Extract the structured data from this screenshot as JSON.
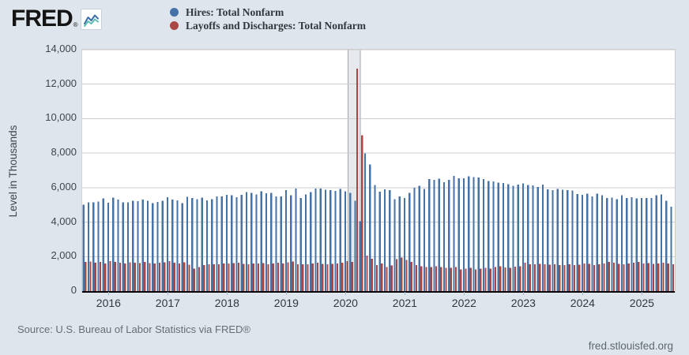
{
  "header": {
    "logo_text": "FRED",
    "logo_registered": "®",
    "legend": [
      {
        "label": "Hires: Total Nonfarm",
        "color": "#4572a7"
      },
      {
        "label": "Layoffs and Discharges: Total Nonfarm",
        "color": "#aa4643"
      }
    ]
  },
  "footer": {
    "source": "Source: U.S. Bureau of Labor Statistics via FRED®",
    "site": "fred.stlouisfed.org"
  },
  "colors": {
    "background": "#dee5ec",
    "plot_background": "#ffffff",
    "gridline": "#cccccc",
    "axis_line": "#000000",
    "recession_band_fill": "#e6eaee",
    "recession_band_edge": "#a5a5a5",
    "hires_blue": "#4572a7",
    "layoffs_red": "#aa4643"
  },
  "chart_data": {
    "type": "bar",
    "title": "",
    "xlabel": "",
    "ylabel": "Level in Thousands",
    "ylim": [
      0,
      14000
    ],
    "grid": true,
    "legend_position": "top",
    "ytick_values": [
      0,
      2000,
      4000,
      6000,
      8000,
      10000,
      12000,
      14000
    ],
    "ytick_labels": [
      "0",
      "2,000",
      "4,000",
      "6,000",
      "8,000",
      "10,000",
      "12,000",
      "14,000"
    ],
    "frequency": "monthly",
    "x_start": "2015-08",
    "x_end": "2025-07",
    "xticks": [
      {
        "label": "2016",
        "index": 5
      },
      {
        "label": "2017",
        "index": 17
      },
      {
        "label": "2018",
        "index": 29
      },
      {
        "label": "2019",
        "index": 41
      },
      {
        "label": "2020",
        "index": 53
      },
      {
        "label": "2021",
        "index": 65
      },
      {
        "label": "2022",
        "index": 77
      },
      {
        "label": "2023",
        "index": 89
      },
      {
        "label": "2024",
        "index": 101
      },
      {
        "label": "2025",
        "index": 113
      }
    ],
    "recession_band": {
      "start_index": 54,
      "end_index": 56
    },
    "series": [
      {
        "name": "Hires: Total Nonfarm",
        "color": "#4572a7",
        "values": [
          5000,
          5150,
          5150,
          5200,
          5380,
          5120,
          5420,
          5300,
          5150,
          5150,
          5250,
          5220,
          5300,
          5230,
          5100,
          5180,
          5250,
          5440,
          5310,
          5270,
          5110,
          5470,
          5400,
          5340,
          5430,
          5270,
          5330,
          5500,
          5490,
          5580,
          5570,
          5440,
          5580,
          5750,
          5700,
          5600,
          5790,
          5680,
          5700,
          5500,
          5480,
          5850,
          5550,
          5950,
          5390,
          5600,
          5750,
          5950,
          5940,
          5890,
          5850,
          5800,
          5930,
          5790,
          5700,
          5240,
          4050,
          7980,
          7350,
          6150,
          5760,
          5900,
          5850,
          5330,
          5480,
          5400,
          5700,
          6000,
          6100,
          5930,
          6500,
          6440,
          6530,
          6320,
          6460,
          6690,
          6540,
          6550,
          6660,
          6620,
          6590,
          6490,
          6380,
          6350,
          6300,
          6270,
          6200,
          6110,
          6170,
          6250,
          6150,
          6120,
          6050,
          6180,
          5900,
          5850,
          5930,
          5870,
          5860,
          5830,
          5620,
          5580,
          5640,
          5500,
          5640,
          5570,
          5390,
          5420,
          5330,
          5560,
          5390,
          5440,
          5370,
          5390,
          5400,
          5410,
          5570,
          5610,
          5230,
          4900
        ]
      },
      {
        "name": "Layoffs and Discharges: Total Nonfarm",
        "color": "#aa4643",
        "values": [
          1700,
          1720,
          1650,
          1700,
          1600,
          1750,
          1700,
          1640,
          1600,
          1680,
          1650,
          1620,
          1700,
          1630,
          1610,
          1650,
          1680,
          1730,
          1650,
          1600,
          1680,
          1540,
          1300,
          1400,
          1500,
          1550,
          1560,
          1550,
          1590,
          1600,
          1620,
          1640,
          1580,
          1560,
          1600,
          1610,
          1630,
          1560,
          1610,
          1650,
          1610,
          1680,
          1720,
          1560,
          1550,
          1560,
          1600,
          1650,
          1580,
          1560,
          1570,
          1600,
          1650,
          1750,
          1700,
          12900,
          9030,
          2050,
          1880,
          1500,
          1600,
          1400,
          1480,
          1850,
          1950,
          1800,
          1700,
          1500,
          1450,
          1400,
          1400,
          1450,
          1400,
          1350,
          1360,
          1400,
          1250,
          1300,
          1350,
          1250,
          1300,
          1350,
          1300,
          1400,
          1450,
          1380,
          1350,
          1420,
          1450,
          1650,
          1560,
          1550,
          1580,
          1560,
          1530,
          1550,
          1520,
          1500,
          1550,
          1520,
          1530,
          1600,
          1580,
          1520,
          1550,
          1600,
          1700,
          1650,
          1580,
          1550,
          1600,
          1650,
          1700,
          1590,
          1620,
          1580,
          1600,
          1650,
          1600,
          1550
        ]
      }
    ]
  }
}
